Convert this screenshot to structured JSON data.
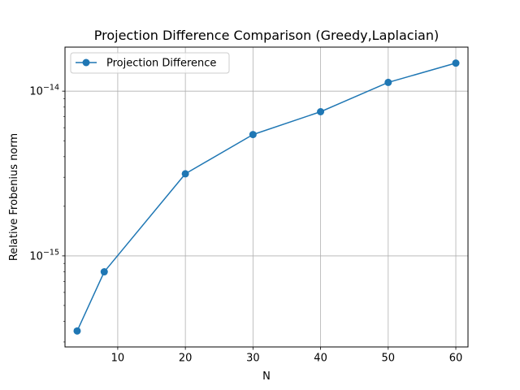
{
  "chart_data": {
    "type": "line",
    "title": "Projection Difference Comparison (Greedy,Laplacian)",
    "xlabel": "N",
    "ylabel": "Relative Frobenius norm",
    "yscale": "log",
    "grid": true,
    "legend_position": "upper-left",
    "xlim": [
      2.2,
      61.8
    ],
    "ylim": [
      2.8e-16,
      1.85e-14
    ],
    "x_ticks": [
      {
        "value": 10,
        "label": "10"
      },
      {
        "value": 20,
        "label": "20"
      },
      {
        "value": 30,
        "label": "30"
      },
      {
        "value": 40,
        "label": "40"
      },
      {
        "value": 50,
        "label": "50"
      },
      {
        "value": 60,
        "label": "60"
      }
    ],
    "y_ticks": [
      {
        "value": 1e-15,
        "base": "10",
        "exponent": "−15"
      },
      {
        "value": 1e-14,
        "base": "10",
        "exponent": "−14"
      }
    ],
    "series": [
      {
        "name": "Projection Difference",
        "color": "#1f77b4",
        "marker": "circle",
        "x": [
          4,
          8,
          20,
          30,
          40,
          50,
          60
        ],
        "y": [
          3.5e-16,
          8e-16,
          3.15e-15,
          5.45e-15,
          7.5e-15,
          1.13e-14,
          1.48e-14
        ]
      }
    ]
  }
}
